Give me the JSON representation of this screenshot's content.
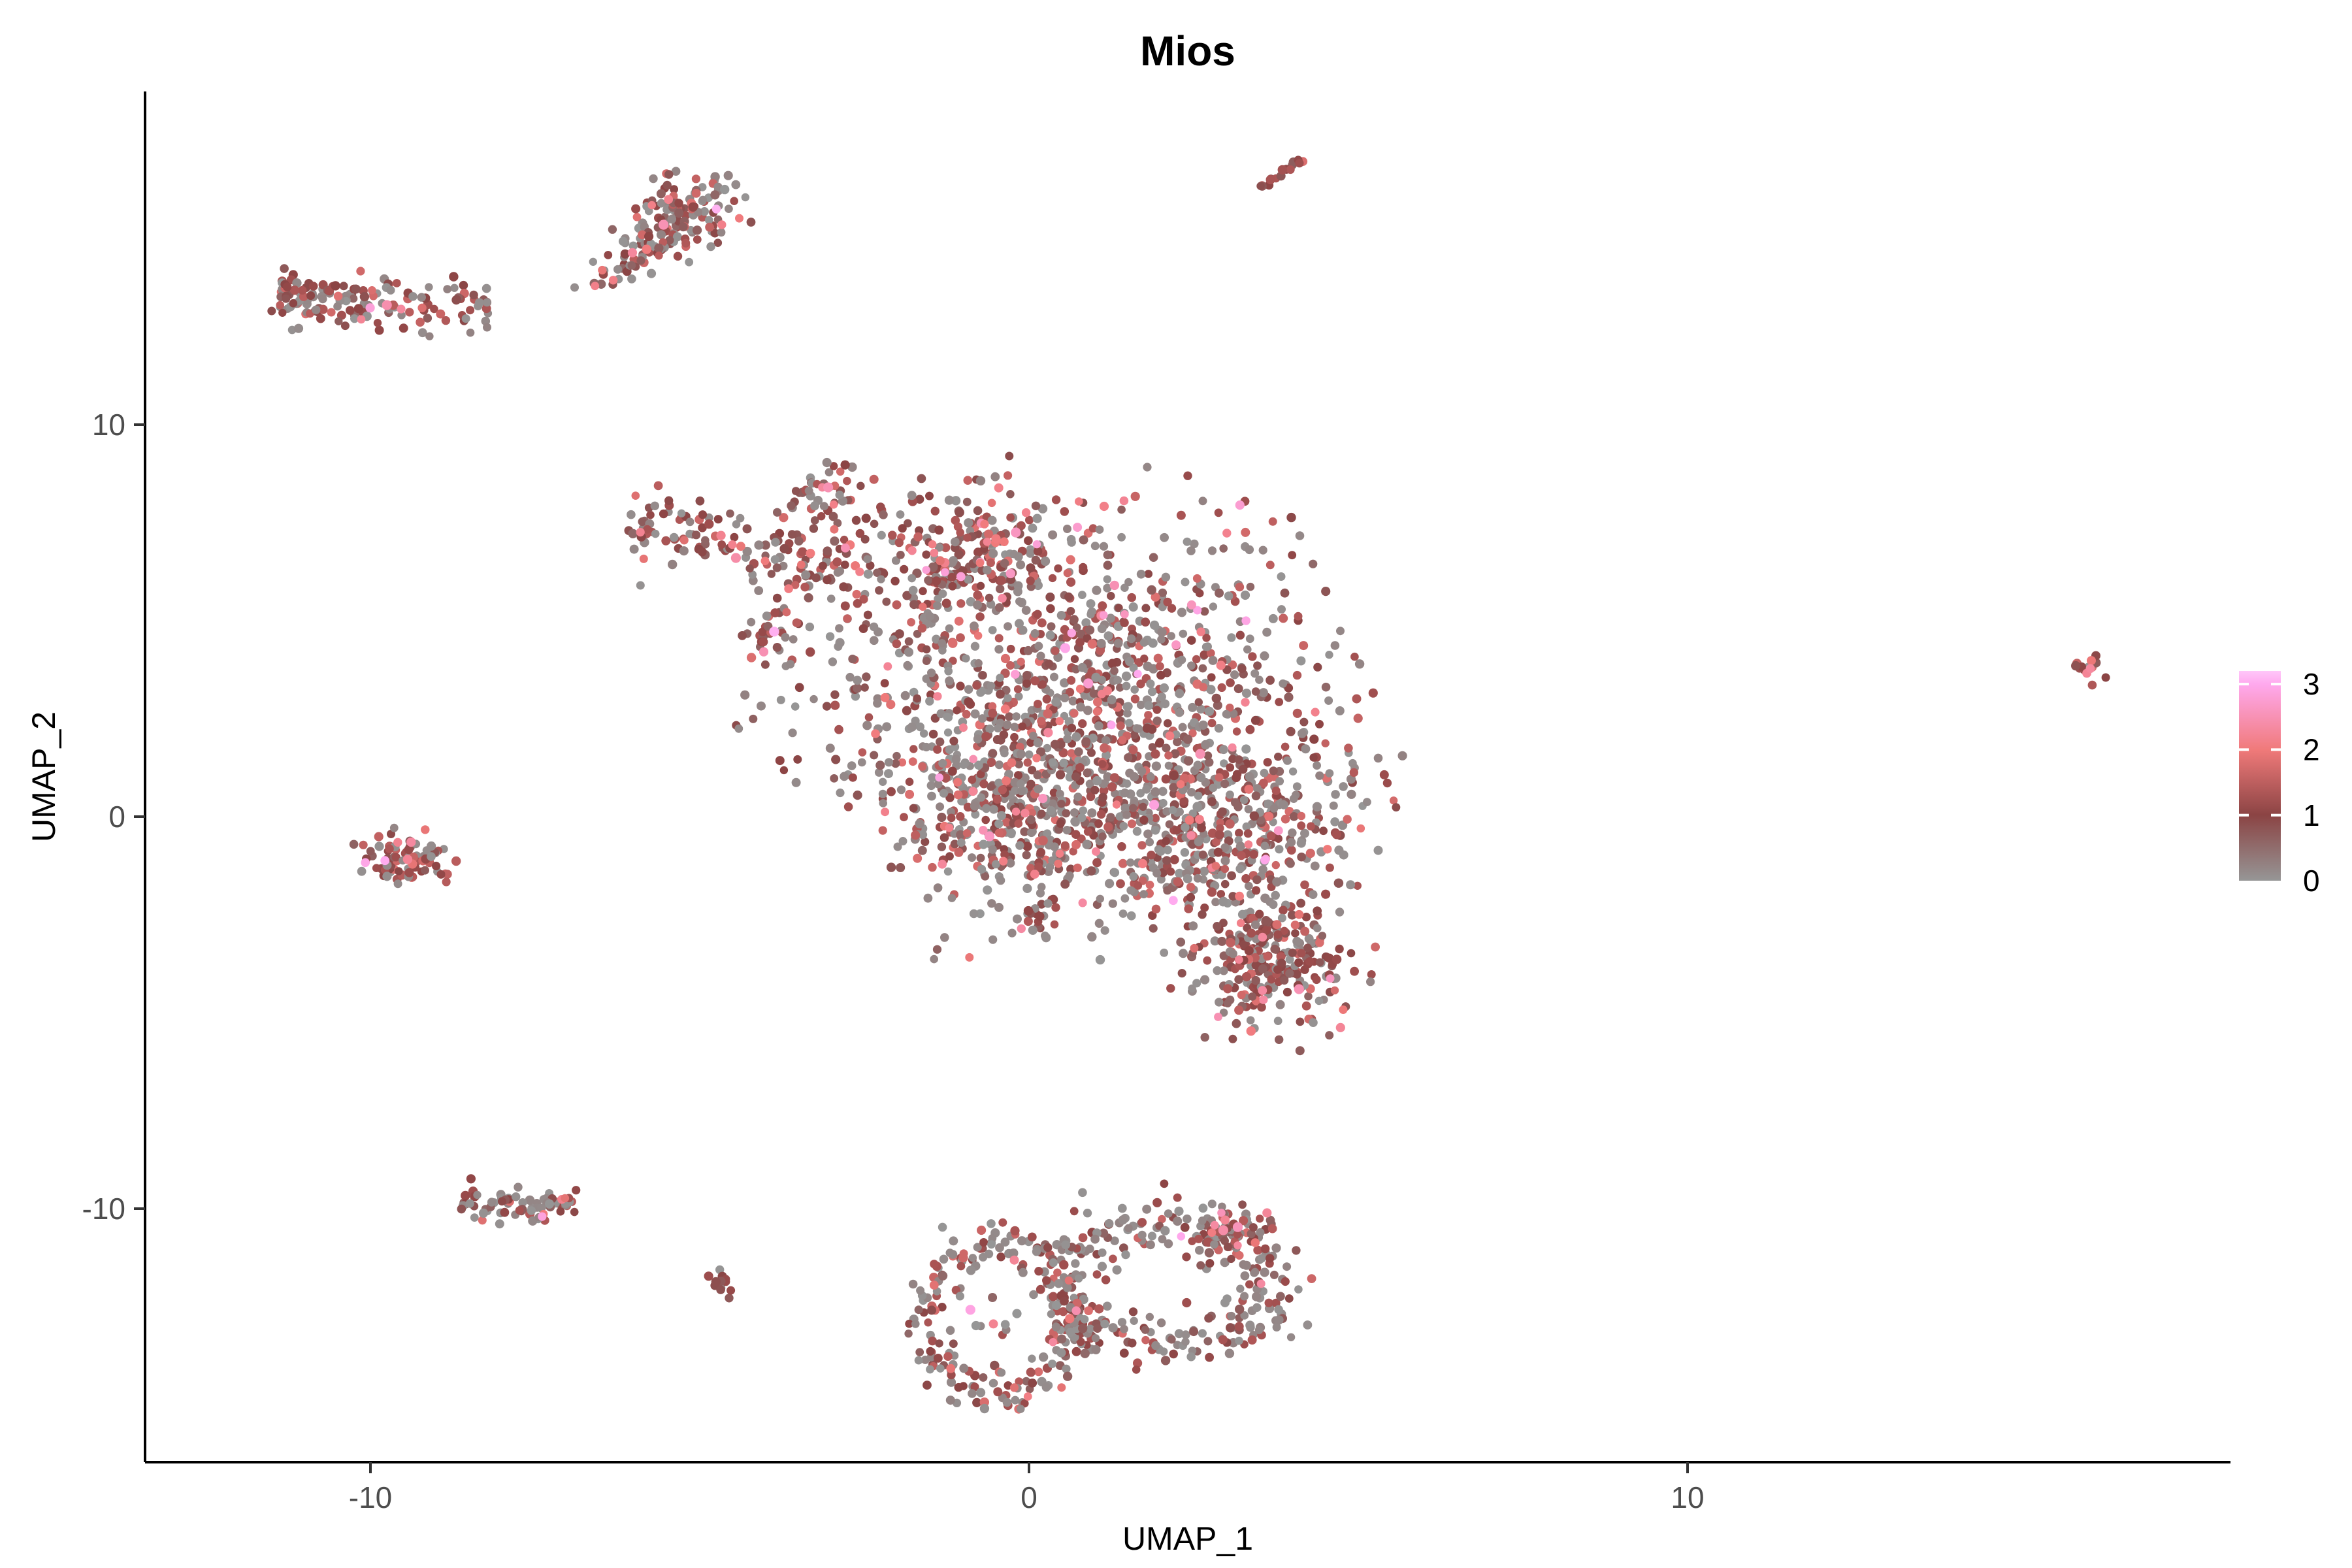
{
  "title": "Mios",
  "axes": {
    "x": {
      "label": "UMAP_1",
      "ticks": [
        -10,
        0,
        10
      ]
    },
    "y": {
      "label": "UMAP_2",
      "ticks": [
        -10,
        0,
        10
      ]
    }
  },
  "legend": {
    "values": [
      3,
      2,
      1,
      0
    ],
    "labels": [
      "3",
      "2",
      "1",
      "0"
    ],
    "max_value": 3.2
  },
  "colors": {
    "background": "#ffffff",
    "axis_line": "#000000",
    "tick_text": "#4d4d4d",
    "scale_stops": [
      {
        "v": 0.0,
        "color": "#969696"
      },
      {
        "v": 1.0,
        "color": "#8B4444"
      },
      {
        "v": 2.0,
        "color": "#F07A7A"
      },
      {
        "v": 3.0,
        "color": "#FFA9EE"
      },
      {
        "v": 3.2,
        "color": "#FFC6F9"
      }
    ]
  },
  "chart_data": {
    "type": "scatter",
    "title": "Mios",
    "xlabel": "UMAP_1",
    "ylabel": "UMAP_2",
    "xlim": [
      -13.4,
      18.2
    ],
    "ylim": [
      -16.6,
      18.5
    ],
    "grid": false,
    "legend_position": "right",
    "seed": 42,
    "point_radius_px": 6.5,
    "value_ranges": {
      "zero": [
        0.0,
        0.25
      ],
      "low": [
        0.55,
        1.35
      ],
      "mid": [
        1.35,
        1.85
      ],
      "high": [
        1.85,
        2.35
      ],
      "vhigh": [
        2.45,
        3.1
      ]
    },
    "value_mixes": {
      "standard": {
        "zero": 0.44,
        "low": 0.4,
        "mid": 0.11,
        "high": 0.04,
        "vhigh": 0.01
      },
      "red": {
        "zero": 0.3,
        "low": 0.52,
        "mid": 0.13,
        "high": 0.045,
        "vhigh": 0.005
      },
      "red2": {
        "zero": 0.26,
        "low": 0.5,
        "mid": 0.15,
        "high": 0.07,
        "vhigh": 0.02
      },
      "dark": {
        "zero": 0.2,
        "low": 0.68,
        "mid": 0.1,
        "high": 0.02,
        "vhigh": 0.0
      },
      "grayish": {
        "zero": 0.58,
        "low": 0.33,
        "mid": 0.07,
        "high": 0.02,
        "vhigh": 0.0
      },
      "ringmix": {
        "zero": 0.47,
        "low": 0.4,
        "mid": 0.09,
        "high": 0.035,
        "vhigh": 0.005
      }
    },
    "clusters": [
      {
        "name": "top-left-strip",
        "shape": "stripe",
        "cx": -9.77,
        "cy": 13.12,
        "rx": 1.6,
        "ry": 0.75,
        "rot": 2,
        "count": 155,
        "mix": "standard",
        "bias_exp": 1.3
      },
      {
        "name": "top-mid-main",
        "shape": "gauss",
        "cx": -5.31,
        "cy": 15.33,
        "rx": 0.95,
        "ry": 1.0,
        "rot": -30,
        "count": 125,
        "mix": "red"
      },
      {
        "name": "top-mid-tail",
        "shape": "stripe",
        "cx": -6.15,
        "cy": 14.17,
        "rx": 0.6,
        "ry": 0.55,
        "rot": -28,
        "count": 45,
        "mix": "standard"
      },
      {
        "name": "diag-streak",
        "shape": "stripe",
        "cx": 3.82,
        "cy": 16.38,
        "rx": 0.42,
        "ry": 0.14,
        "rot": -35,
        "count": 16,
        "mix": "dark"
      },
      {
        "name": "main-left-arm",
        "shape": "stripe",
        "cx": -4.22,
        "cy": 6.83,
        "rx": 1.9,
        "ry": 1.0,
        "rot": 14,
        "count": 150,
        "mix": "red"
      },
      {
        "name": "main-hook",
        "shape": "gauss",
        "cx": -3.08,
        "cy": 8.25,
        "rx": 0.68,
        "ry": 0.75,
        "rot": -35,
        "count": 45,
        "mix": "red"
      },
      {
        "name": "main-small-clump",
        "shape": "gauss",
        "cx": -3.87,
        "cy": 4.75,
        "rx": 0.55,
        "ry": 0.65,
        "rot": -35,
        "count": 30,
        "mix": "red"
      },
      {
        "name": "main-top-dense",
        "shape": "gauss",
        "cx": -0.94,
        "cy": 6.67,
        "rx": 1.7,
        "ry": 1.85,
        "rot": -10,
        "count": 260,
        "mix": "red2"
      },
      {
        "name": "main-core",
        "shape": "gauss",
        "cx": 1.04,
        "cy": 2.83,
        "rx": 3.37,
        "ry": 4.33,
        "rot": -25,
        "count": 950,
        "mix": "standard"
      },
      {
        "name": "main-right",
        "shape": "gauss",
        "cx": 3.03,
        "cy": -0.33,
        "rx": 2.18,
        "ry": 2.67,
        "rot": -20,
        "count": 460,
        "mix": "standard"
      },
      {
        "name": "main-lower-left",
        "shape": "gauss",
        "cx": -0.15,
        "cy": 0.17,
        "rx": 1.8,
        "ry": 2.3,
        "rot": 0,
        "count": 320,
        "mix": "standard"
      },
      {
        "name": "main-spray",
        "shape": "gauss",
        "cx": -1.8,
        "cy": 3.5,
        "rx": 2.3,
        "ry": 3.2,
        "rot": 0,
        "count": 150,
        "mix": "grayish"
      },
      {
        "name": "main-appendage",
        "shape": "gauss",
        "cx": 3.72,
        "cy": -3.67,
        "rx": 1.3,
        "ry": 1.9,
        "rot": 8,
        "count": 270,
        "mix": "red"
      },
      {
        "name": "main-protrusion",
        "shape": "gauss",
        "cx": 0.15,
        "cy": -2.58,
        "rx": 0.5,
        "ry": 0.6,
        "rot": 0,
        "count": 22,
        "mix": "red"
      },
      {
        "name": "left-small",
        "shape": "gauss",
        "cx": -9.47,
        "cy": -1.0,
        "rx": 0.68,
        "ry": 0.62,
        "rot": 0,
        "count": 85,
        "mix": "red2"
      },
      {
        "name": "far-right-tiny",
        "shape": "gauss",
        "cx": 16.07,
        "cy": 3.83,
        "rx": 0.26,
        "ry": 0.4,
        "rot": -35,
        "count": 13,
        "mix": "dark"
      },
      {
        "name": "bottom-left-strip",
        "shape": "stripe",
        "cx": -7.74,
        "cy": -9.83,
        "rx": 0.88,
        "ry": 0.55,
        "rot": 5,
        "count": 75,
        "mix": "standard"
      },
      {
        "name": "tiny-clump",
        "shape": "gauss",
        "cx": -4.7,
        "cy": -11.9,
        "rx": 0.24,
        "ry": 0.33,
        "rot": 0,
        "count": 12,
        "mix": "dark"
      },
      {
        "name": "bottom-ring-left",
        "shape": "ring",
        "cx": -0.45,
        "cy": -12.83,
        "rx": 1.08,
        "ry": 1.85,
        "rot": 0,
        "count": 215,
        "mix": "ringmix",
        "band": 0.16
      },
      {
        "name": "ring-left-inner",
        "shape": "gauss",
        "cx": -0.45,
        "cy": -12.8,
        "rx": 0.4,
        "ry": 0.7,
        "rot": 0,
        "count": 7,
        "mix": "grayish"
      },
      {
        "name": "bottom-ring-right",
        "shape": "ring",
        "cx": 2.13,
        "cy": -11.87,
        "rx": 1.5,
        "ry": 1.65,
        "rot": 0,
        "count": 255,
        "mix": "ringmix",
        "band": 0.2
      },
      {
        "name": "ring-right-top",
        "shape": "gauss",
        "cx": 3.0,
        "cy": -10.75,
        "rx": 0.62,
        "ry": 0.7,
        "rot": -15,
        "count": 70,
        "mix": "red2"
      },
      {
        "name": "ring-connector",
        "shape": "gauss",
        "cx": 0.72,
        "cy": -12.9,
        "rx": 0.5,
        "ry": 0.55,
        "rot": 0,
        "count": 30,
        "mix": "grayish"
      }
    ],
    "singles": [
      {
        "x": -8.23,
        "y": 13.12,
        "v": 0.1
      },
      {
        "x": -6.9,
        "y": 13.5,
        "v": 0.1
      },
      {
        "x": -0.3,
        "y": 9.2,
        "v": 0.9
      },
      {
        "x": -5.9,
        "y": 5.9,
        "v": 0.05
      },
      {
        "x": 16.35,
        "y": 3.55,
        "v": 1.0
      },
      {
        "x": -11.5,
        "y": 12.9,
        "v": 0.9
      }
    ],
    "highlights": [
      {
        "x": -3.87,
        "y": 4.72,
        "v": 3.05
      },
      {
        "x": -0.89,
        "y": -12.58,
        "v": 2.9
      },
      {
        "x": 3.17,
        "y": -10.47,
        "v": 2.55
      },
      {
        "x": -9.75,
        "y": 13.05,
        "v": 2.45
      },
      {
        "x": -0.2,
        "y": 7.25,
        "v": 2.6
      },
      {
        "x": 0.9,
        "y": 3.4,
        "v": 2.75
      },
      {
        "x": 2.95,
        "y": -10.55,
        "v": 2.4
      },
      {
        "x": -5.55,
        "y": 15.1,
        "v": 2.5
      },
      {
        "x": -3.05,
        "y": 8.4,
        "v": 2.5
      },
      {
        "x": 1.9,
        "y": 0.3,
        "v": 2.85
      },
      {
        "x": 0.55,
        "y": 4.3,
        "v": 2.95
      },
      {
        "x": -0.6,
        "y": -0.5,
        "v": 2.6
      },
      {
        "x": 2.6,
        "y": 1.6,
        "v": 2.5
      },
      {
        "x": -4.45,
        "y": 6.6,
        "v": 2.4
      },
      {
        "x": 4.1,
        "y": -4.4,
        "v": 2.5
      }
    ]
  }
}
